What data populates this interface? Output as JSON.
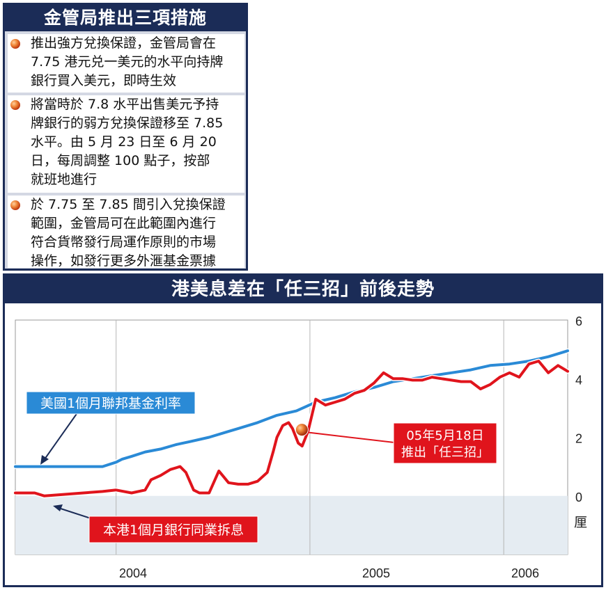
{
  "info": {
    "title": "金管局推出三項措施",
    "bullets": [
      {
        "lines": [
          "推出強方兌換保證，金管局會在",
          "7.75 港元兑一美元的水平向持牌",
          "銀行買入美元，即時生效"
        ]
      },
      {
        "lines": [
          "將當時於 7.8 水平出售美元予持",
          "牌銀行的弱方兌換保證移至 7.85",
          "水平。由 5 月 23 日至 6 月 20",
          "日，每周調整 100 點子，按部",
          "就班地進行"
        ]
      },
      {
        "lines": [
          "於 7.75 至 7.85 間引入兌換保證",
          "範圍，金管局可在此範圍內進行",
          "符合貨幣發行局運作原則的市場",
          "操作，如發行更多外滙基金票據"
        ]
      }
    ]
  },
  "chart": {
    "title": "港美息差在「任三招」前後走勢",
    "unit_label": "厘",
    "y_ticks": [
      "6",
      "4",
      "2",
      "0"
    ],
    "x_ticks": [
      "2004",
      "2005",
      "2006"
    ],
    "labels": {
      "us_rate": "美國1個月聯邦基金利率",
      "hk_rate": "本港1個月銀行同業拆息",
      "event_line1": "05年5月18日",
      "event_line2": "推出「任三招」"
    },
    "colors": {
      "us": "#2a8ad6",
      "hk": "#e0141c",
      "navy": "#1b2c57",
      "neg_band": "#e5ecf2"
    }
  },
  "chart_data": {
    "type": "line",
    "ylim": [
      -2,
      6
    ],
    "xlim": [
      2003.45,
      2006.3
    ],
    "series": [
      {
        "name": "美國1個月聯邦基金利率",
        "x": [
          2003.45,
          2003.9,
          2003.97,
          2004.0,
          2004.05,
          2004.12,
          2004.2,
          2004.28,
          2004.35,
          2004.45,
          2004.55,
          2004.6,
          2004.7,
          2004.8,
          2004.9,
          2004.95,
          2005.0,
          2005.1,
          2005.2,
          2005.3,
          2005.4,
          2005.5,
          2005.6,
          2005.7,
          2005.8,
          2005.9,
          2006.0,
          2006.1,
          2006.2,
          2006.3
        ],
        "values": [
          1.0,
          1.0,
          1.15,
          1.25,
          1.35,
          1.5,
          1.6,
          1.75,
          1.85,
          2.0,
          2.2,
          2.3,
          2.5,
          2.75,
          2.9,
          3.05,
          3.2,
          3.35,
          3.55,
          3.7,
          3.9,
          4.0,
          4.1,
          4.2,
          4.3,
          4.45,
          4.5,
          4.6,
          4.75,
          4.95
        ]
      },
      {
        "name": "本港1個月銀行同業拆息",
        "x": [
          2003.45,
          2003.55,
          2003.6,
          2003.7,
          2003.8,
          2003.9,
          2003.97,
          2004.05,
          2004.12,
          2004.15,
          2004.2,
          2004.25,
          2004.3,
          2004.33,
          2004.37,
          2004.4,
          2004.45,
          2004.5,
          2004.55,
          2004.6,
          2004.65,
          2004.7,
          2004.75,
          2004.78,
          2004.8,
          2004.83,
          2004.86,
          2004.88,
          2004.91,
          2004.93,
          2004.96,
          2005.0,
          2005.05,
          2005.1,
          2005.15,
          2005.2,
          2005.25,
          2005.3,
          2005.35,
          2005.4,
          2005.45,
          2005.5,
          2005.55,
          2005.6,
          2005.65,
          2005.7,
          2005.75,
          2005.8,
          2005.85,
          2005.9,
          2005.95,
          2006.0,
          2006.05,
          2006.1,
          2006.15,
          2006.2,
          2006.25,
          2006.3
        ],
        "values": [
          0.1,
          0.1,
          0.0,
          0.05,
          0.1,
          0.15,
          0.2,
          0.1,
          0.2,
          0.55,
          0.7,
          0.9,
          1.0,
          0.8,
          0.2,
          0.1,
          0.1,
          0.85,
          0.45,
          0.4,
          0.4,
          0.5,
          0.8,
          1.5,
          2.0,
          2.4,
          2.5,
          2.3,
          1.8,
          1.7,
          2.2,
          3.3,
          3.1,
          3.2,
          3.3,
          3.5,
          3.6,
          3.85,
          4.2,
          4.0,
          4.0,
          3.95,
          3.95,
          4.05,
          4.0,
          3.95,
          3.9,
          3.9,
          3.65,
          3.8,
          4.05,
          4.2,
          4.05,
          4.5,
          4.6,
          4.2,
          4.45,
          4.25
        ]
      }
    ],
    "annotation": {
      "x": 2004.95,
      "y": 2.4,
      "text": "05年5月18日 推出「任三招」"
    }
  }
}
